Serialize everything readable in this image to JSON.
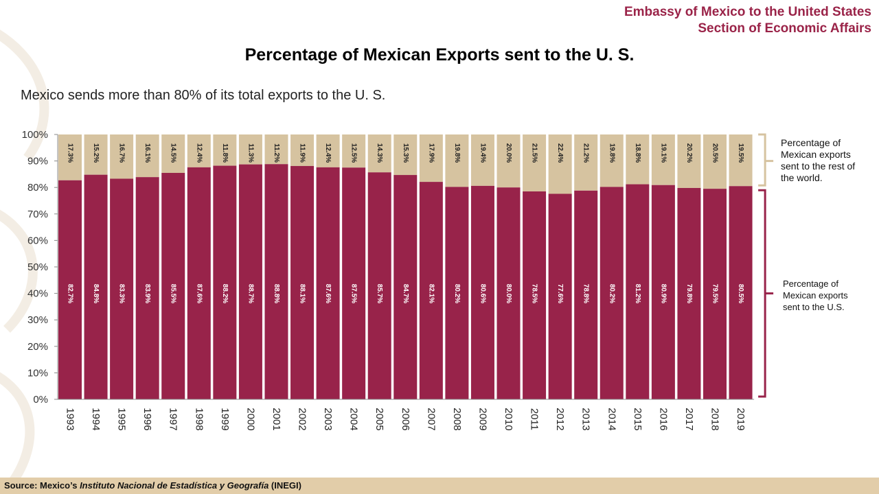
{
  "header": {
    "line1": "Embassy of Mexico to the United States",
    "line2": "Section of Economic Affairs"
  },
  "colors": {
    "us": "#98234a",
    "rest": "#d6c3a0",
    "accent": "#9a2348",
    "footer_bg": "#e2cda9"
  },
  "legend": {
    "rest": "Percentage of Mexican exports sent to the rest of the world.",
    "us": "Percentage of Mexican exports sent to the U.S."
  },
  "footer": {
    "prefix": "Source: Mexico’s ",
    "italic": "Instituto Nacional de Estadística y Geografía",
    "suffix": " (INEGI)"
  },
  "chart_data": {
    "type": "bar",
    "stacked": true,
    "title": "Percentage of Mexican Exports sent to the U. S.",
    "subtitle": "Mexico sends more than 80% of its total exports to the U. S.",
    "categories": [
      "1993",
      "1994",
      "1995",
      "1996",
      "1997",
      "1998",
      "1999",
      "2000",
      "2001",
      "2002",
      "2003",
      "2004",
      "2005",
      "2006",
      "2007",
      "2008",
      "2009",
      "2010",
      "2011",
      "2012",
      "2013",
      "2014",
      "2015",
      "2016",
      "2017",
      "2018",
      "2019"
    ],
    "series": [
      {
        "name": "Percentage of Mexican exports sent to the U.S.",
        "values": [
          82.7,
          84.8,
          83.3,
          83.9,
          85.5,
          87.6,
          88.2,
          88.7,
          88.8,
          88.1,
          87.6,
          87.5,
          85.7,
          84.7,
          82.1,
          80.2,
          80.6,
          80.0,
          78.5,
          77.6,
          78.8,
          80.2,
          81.2,
          80.9,
          79.8,
          79.5,
          80.5
        ]
      },
      {
        "name": "Percentage of Mexican exports sent to the rest of the world.",
        "values": [
          17.3,
          15.2,
          16.7,
          16.1,
          14.5,
          12.4,
          11.8,
          11.3,
          11.2,
          11.9,
          12.4,
          12.5,
          14.3,
          15.3,
          17.9,
          19.8,
          19.4,
          20.0,
          21.5,
          22.4,
          21.2,
          19.8,
          18.8,
          19.1,
          20.2,
          20.5,
          19.5
        ]
      }
    ],
    "us_labels": [
      "82.7%",
      "84.8%",
      "83.3%",
      "83.9%",
      "85.5%",
      "87.6%",
      "88.2%",
      "88.7%",
      "88.8%",
      "88.1%",
      "87.6%",
      "87.5%",
      "85.7%",
      "84.7%",
      "82.1%",
      "80.2%",
      "80.6%",
      "80.0%",
      "78.5%",
      "77.6%",
      "78.8%",
      "80.2%",
      "81.2%",
      "80.9%",
      "79.8%",
      "79.5%",
      "80.5%"
    ],
    "rest_labels": [
      "17.3%",
      "15.2%",
      "16.7%",
      "16.1%",
      "14.5%",
      "12.4%",
      "11.8%",
      "11.3%",
      "11.2%",
      "11.9%",
      "12.4%",
      "12.5%",
      "14.3%",
      "15.3%",
      "17.9%",
      "19.8%",
      "19.4%",
      "20.0%",
      "21.5%",
      "22.4%",
      "21.2%",
      "19.8%",
      "18.8%",
      "19.1%",
      "20.2%",
      "20.5%",
      "19.5%"
    ],
    "yticks": [
      "0%",
      "10%",
      "20%",
      "30%",
      "40%",
      "50%",
      "60%",
      "70%",
      "80%",
      "90%",
      "100%"
    ],
    "ylim": [
      0,
      100
    ],
    "grid": false,
    "legend_position": "right"
  }
}
